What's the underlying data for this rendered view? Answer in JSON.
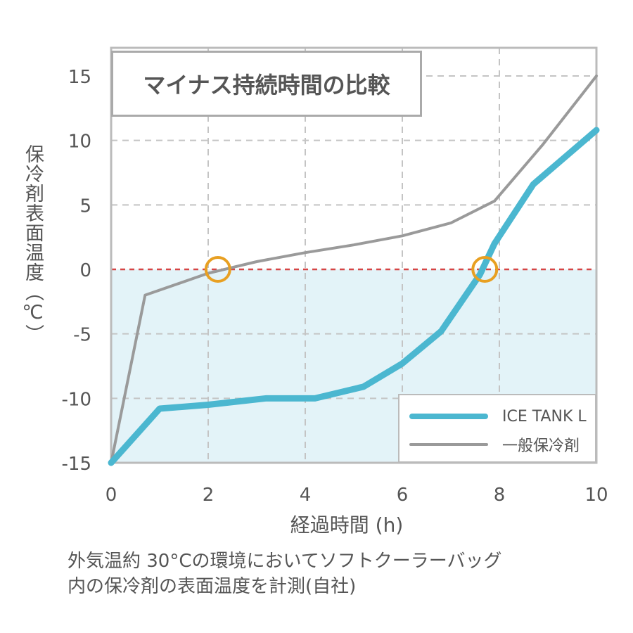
{
  "chart_data": {
    "type": "line",
    "title": "マイナス持続時間の比較",
    "xlabel": "経過時間 (h)",
    "ylabel": "保冷剤表面温度（℃）",
    "xlim": [
      0,
      10
    ],
    "ylim": [
      -15,
      15
    ],
    "x_ticks": [
      "0",
      "2",
      "4",
      "6",
      "8",
      "10"
    ],
    "y_ticks": [
      "15",
      "10",
      "5",
      "0",
      "-5",
      "-10",
      "-15"
    ],
    "grid": true,
    "legend_position": "bottom-right",
    "reference_line": {
      "y": 0,
      "color": "#d64545",
      "style": "dashed"
    },
    "below_zero_fill": "#e3f3f8",
    "series": [
      {
        "name": "ICE TANK L",
        "color": "#4bb7d0",
        "points": [
          [
            0,
            -15
          ],
          [
            1,
            -10.8
          ],
          [
            2,
            -10.5
          ],
          [
            3.2,
            -10
          ],
          [
            4.2,
            -10
          ],
          [
            5.2,
            -9.1
          ],
          [
            6,
            -7.3
          ],
          [
            6.8,
            -4.8
          ],
          [
            7.6,
            -0.4
          ],
          [
            7.9,
            2
          ],
          [
            8.7,
            6.6
          ],
          [
            10,
            10.8
          ]
        ]
      },
      {
        "name": "一般保冷剤",
        "color": "#9a9a9a",
        "points": [
          [
            0,
            -15
          ],
          [
            0.7,
            -2
          ],
          [
            2,
            -0.3
          ],
          [
            3,
            0.6
          ],
          [
            4,
            1.3
          ],
          [
            5,
            1.9
          ],
          [
            6,
            2.6
          ],
          [
            7,
            3.6
          ],
          [
            7.9,
            5.3
          ],
          [
            8.9,
            9.7
          ],
          [
            10,
            15
          ]
        ]
      }
    ],
    "markers": [
      {
        "x": 2.2,
        "y": 0,
        "color": "#e8a022"
      },
      {
        "x": 7.7,
        "y": 0,
        "color": "#e8a022"
      }
    ]
  },
  "caption": {
    "line1": "外気温約 30°Cの環境においてソフトクーラーバッグ",
    "line2": "内の保冷剤の表面温度を計測(自社)"
  }
}
